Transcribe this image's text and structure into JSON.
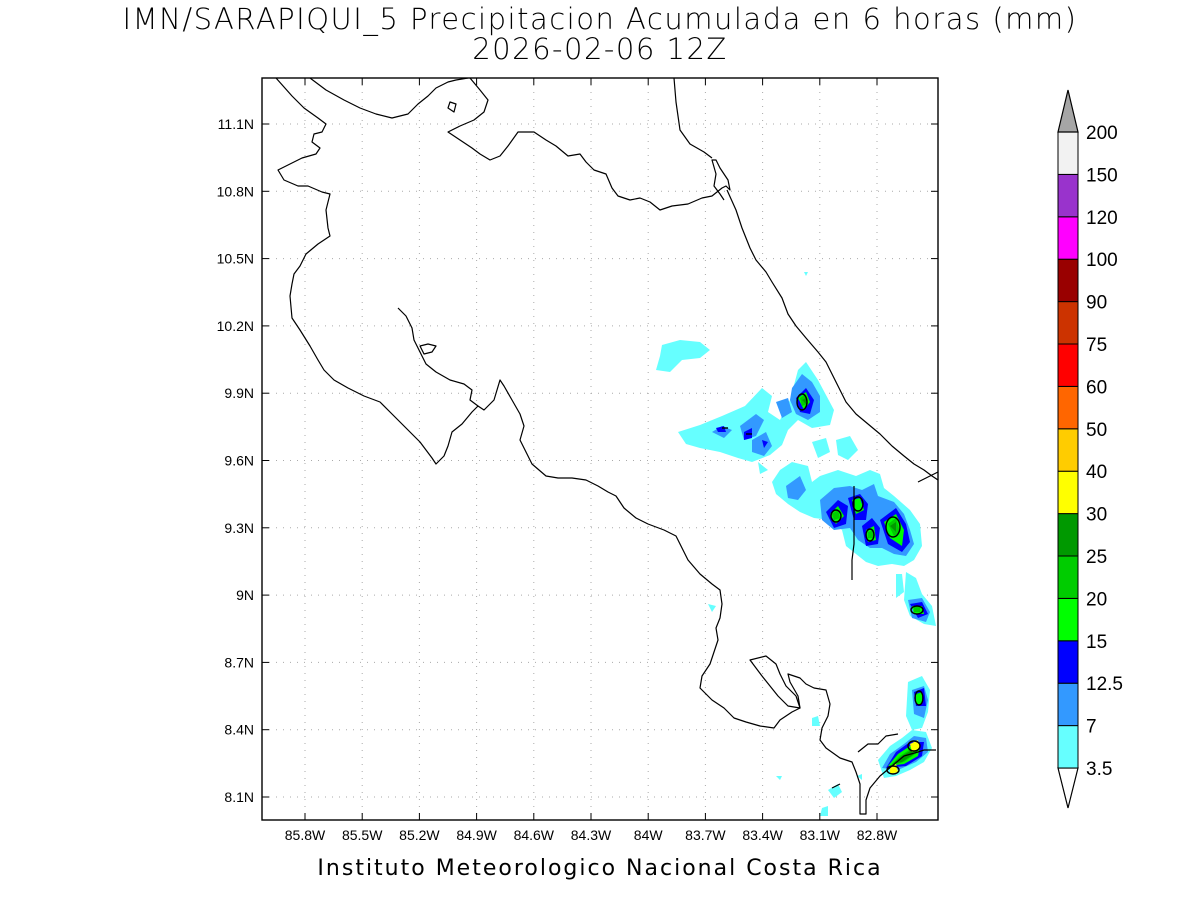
{
  "title": {
    "line1": "IMN/SARAPIQUI_5 Precipitacion Acumulada en 6 horas (mm)",
    "line2": "2026-02-06 12Z"
  },
  "credit": "Instituto Meteorologico Nacional Costa Rica",
  "axes": {
    "lat_labels": [
      "11.1N",
      "10.8N",
      "10.5N",
      "10.2N",
      "9.9N",
      "9.6N",
      "9.3N",
      "9N",
      "8.7N",
      "8.4N",
      "8.1N"
    ],
    "lon_labels": [
      "85.8W",
      "85.5W",
      "85.2W",
      "84.9W",
      "84.6W",
      "84.3W",
      "84W",
      "83.7W",
      "83.4W",
      "83.1W",
      "82.8W"
    ]
  },
  "colorbar": {
    "levels": [
      "3.5",
      "7",
      "12.5",
      "15",
      "20",
      "25",
      "30",
      "40",
      "50",
      "60",
      "75",
      "90",
      "100",
      "120",
      "150",
      "200"
    ],
    "colors": [
      "#66ffff",
      "#3399ff",
      "#0000ff",
      "#00ff00",
      "#00cc00",
      "#009900",
      "#ffff00",
      "#ffcc00",
      "#ff6600",
      "#ff0000",
      "#cc3300",
      "#990000",
      "#ff00ff",
      "#9933cc",
      "#f2f2f2",
      "#a6a6a6"
    ]
  }
}
